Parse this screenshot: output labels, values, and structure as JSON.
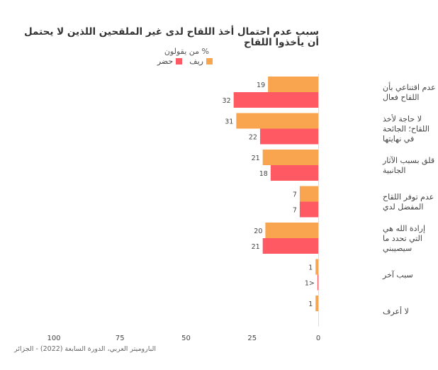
{
  "chart_data": {
    "type": "bar",
    "orientation": "horizontal",
    "title": "سبب عدم احتمال أخذ اللقاح لدى غير الملقحين اللذين لا يحتمل أن يأخذوا اللقاح",
    "subtitle": "% من يقولون",
    "source": "الباروميتر العربي، الدورة السابعة (2022) - الجزائر",
    "categories": [
      "عدم اقتناعي بأن اللقاح فعال",
      "لا حاجة لأخذ اللقاح؛ الجائحة في نهايتها",
      "قلق بسبب الآثار الجانبية",
      "عدم توفر اللقاح المفضل لدي",
      "إرادة الله هي التي تحدد ما سيصيبني",
      "سبب آخر",
      "لا أعرف"
    ],
    "series": [
      {
        "name": "ريف",
        "color": "#F9A54F",
        "values": [
          19,
          31,
          21,
          7,
          20,
          1,
          1
        ],
        "labels": [
          "19",
          "31",
          "21",
          "7",
          "20",
          "1",
          "1"
        ]
      },
      {
        "name": "حضر",
        "color": "#FF5A64",
        "values": [
          32,
          22,
          18,
          7,
          21,
          0.3,
          null
        ],
        "labels": [
          "32",
          "22",
          "18",
          "7",
          "21",
          "1>",
          ""
        ]
      }
    ],
    "xlim": [
      0,
      100
    ],
    "x_reversed": true,
    "ticks": [
      100,
      75,
      50,
      25,
      0
    ],
    "grid": false,
    "legend_position": "top"
  }
}
